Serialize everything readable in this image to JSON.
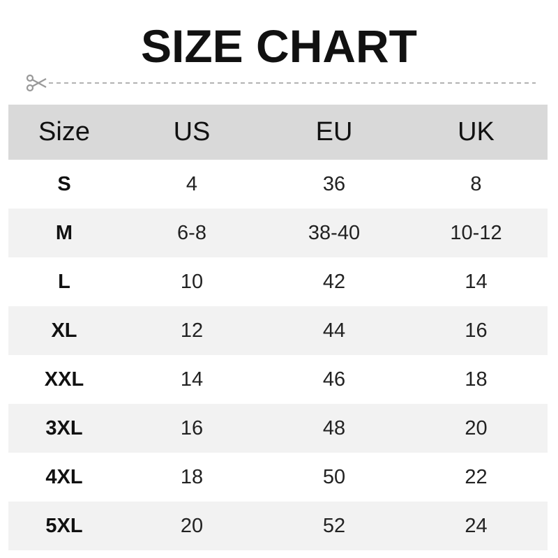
{
  "title": "SIZE CHART",
  "colors": {
    "header_bg": "#d9d9d9",
    "alt_row_bg": "#f2f2f2",
    "divider": "#999999"
  },
  "icons": {
    "cut_line": "scissors-icon"
  },
  "table": {
    "headers": [
      "Size",
      "US",
      "EU",
      "UK"
    ],
    "rows": [
      [
        "S",
        "4",
        "36",
        "8"
      ],
      [
        "M",
        "6-8",
        "38-40",
        "10-12"
      ],
      [
        "L",
        "10",
        "42",
        "14"
      ],
      [
        "XL",
        "12",
        "44",
        "16"
      ],
      [
        "XXL",
        "14",
        "46",
        "18"
      ],
      [
        "3XL",
        "16",
        "48",
        "20"
      ],
      [
        "4XL",
        "18",
        "50",
        "22"
      ],
      [
        "5XL",
        "20",
        "52",
        "24"
      ]
    ]
  }
}
